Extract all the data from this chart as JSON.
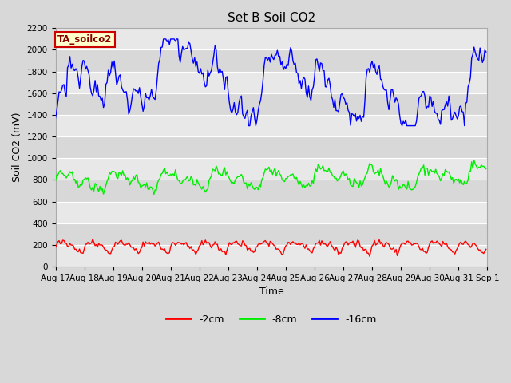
{
  "title": "Set B Soil CO2",
  "xlabel": "Time",
  "ylabel": "Soil CO2 (mV)",
  "ylim": [
    0,
    2200
  ],
  "yticks": [
    0,
    200,
    400,
    600,
    800,
    1000,
    1200,
    1400,
    1600,
    1800,
    2000,
    2200
  ],
  "xtick_labels": [
    "Aug 17",
    "Aug 18",
    "Aug 19",
    "Aug 20",
    "Aug 21",
    "Aug 22",
    "Aug 23",
    "Aug 24",
    "Aug 25",
    "Aug 26",
    "Aug 27",
    "Aug 28",
    "Aug 29",
    "Aug 30",
    "Aug 31",
    "Sep 1"
  ],
  "line_colors": [
    "#ff0000",
    "#00ee00",
    "#0000ff"
  ],
  "line_labels": [
    "-2cm",
    "-8cm",
    "-16cm"
  ],
  "fig_bg_color": "#d8d8d8",
  "plot_bg_color": "#e8e8e8",
  "band_color_light": "#e8e8e8",
  "band_color_dark": "#d8d8d8",
  "grid_color": "#ffffff",
  "legend_label_box_color": "#ffffcc",
  "legend_label_box_edge": "#cc0000",
  "legend_label_text": "TA_soilco2",
  "legend_label_text_color": "#880000",
  "title_fontsize": 11,
  "axis_label_fontsize": 9,
  "tick_fontsize": 7.5,
  "n_points": 360
}
